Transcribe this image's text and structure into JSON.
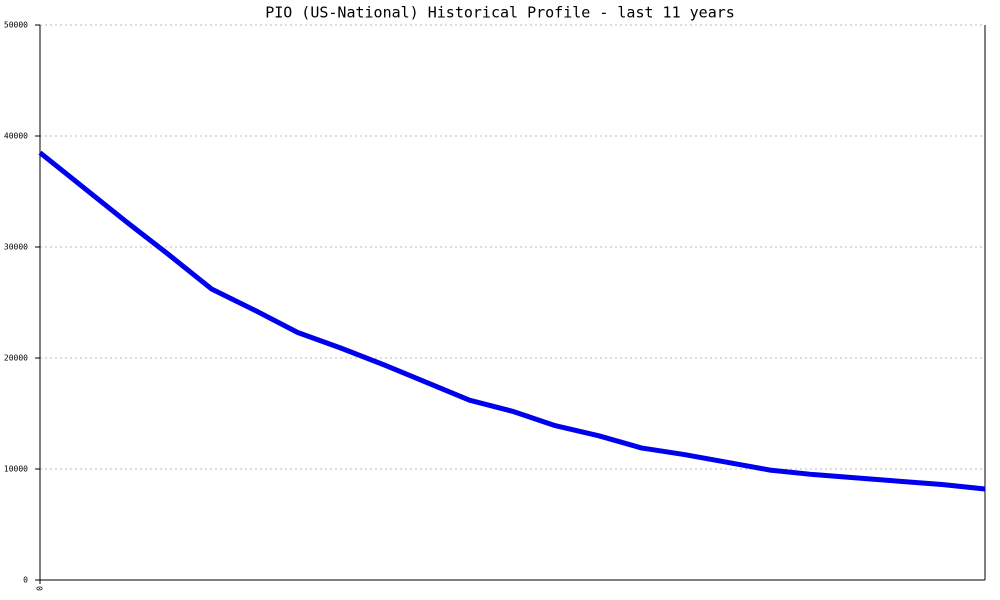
{
  "chart_data": {
    "type": "line",
    "title": "PIO (US-National) Historical Profile - last 11 years",
    "categories": [
      "0",
      null,
      null,
      null,
      null,
      null,
      null,
      null,
      null,
      null,
      null,
      null,
      null,
      null,
      null,
      null,
      null,
      null,
      null,
      null,
      null,
      null,
      null
    ],
    "series": [
      {
        "color": "#0000ee",
        "values": [
          38500,
          35400,
          32300,
          29300,
          26200,
          24300,
          22300,
          20900,
          19400,
          17800,
          16200,
          15200,
          13900,
          13000,
          11900,
          11300,
          10600,
          9900,
          9500,
          9200,
          8900,
          8600,
          8200
        ]
      }
    ],
    "ylim": [
      0,
      50000
    ],
    "yticks": [
      0,
      10000,
      20000,
      30000,
      40000,
      50000
    ],
    "grid": true
  }
}
